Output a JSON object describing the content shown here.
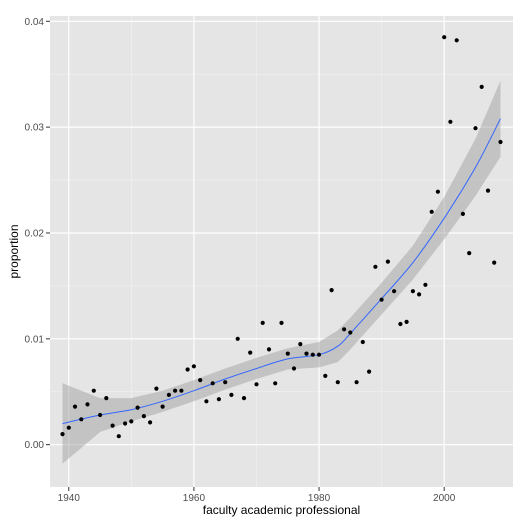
{
  "chart_data": {
    "type": "scatter",
    "xlabel": "faculty academic professional",
    "ylabel": "proportion",
    "xlim": [
      1937,
      2011
    ],
    "ylim": [
      -0.004,
      0.0405
    ],
    "x_ticks": [
      1940,
      1960,
      1980,
      2000
    ],
    "y_ticks": [
      0.0,
      0.01,
      0.02,
      0.03,
      0.04
    ],
    "y_tick_labels": [
      "0.00",
      "0.01",
      "0.02",
      "0.03",
      "0.04"
    ],
    "grid": true,
    "points": [
      {
        "x": 1939,
        "y": 0.001
      },
      {
        "x": 1940,
        "y": 0.0016
      },
      {
        "x": 1941,
        "y": 0.0036
      },
      {
        "x": 1942,
        "y": 0.0024
      },
      {
        "x": 1943,
        "y": 0.0038
      },
      {
        "x": 1944,
        "y": 0.0051
      },
      {
        "x": 1945,
        "y": 0.0028
      },
      {
        "x": 1946,
        "y": 0.0044
      },
      {
        "x": 1947,
        "y": 0.0018
      },
      {
        "x": 1948,
        "y": 0.0008
      },
      {
        "x": 1949,
        "y": 0.002
      },
      {
        "x": 1950,
        "y": 0.0022
      },
      {
        "x": 1951,
        "y": 0.0035
      },
      {
        "x": 1952,
        "y": 0.0027
      },
      {
        "x": 1953,
        "y": 0.0021
      },
      {
        "x": 1954,
        "y": 0.0053
      },
      {
        "x": 1955,
        "y": 0.0036
      },
      {
        "x": 1956,
        "y": 0.0047
      },
      {
        "x": 1957,
        "y": 0.0051
      },
      {
        "x": 1958,
        "y": 0.0051
      },
      {
        "x": 1959,
        "y": 0.0071
      },
      {
        "x": 1960,
        "y": 0.0074
      },
      {
        "x": 1961,
        "y": 0.0061
      },
      {
        "x": 1962,
        "y": 0.0041
      },
      {
        "x": 1963,
        "y": 0.0058
      },
      {
        "x": 1964,
        "y": 0.0043
      },
      {
        "x": 1965,
        "y": 0.0059
      },
      {
        "x": 1966,
        "y": 0.0047
      },
      {
        "x": 1967,
        "y": 0.01
      },
      {
        "x": 1968,
        "y": 0.0044
      },
      {
        "x": 1969,
        "y": 0.0087
      },
      {
        "x": 1970,
        "y": 0.0057
      },
      {
        "x": 1971,
        "y": 0.0115
      },
      {
        "x": 1972,
        "y": 0.009
      },
      {
        "x": 1973,
        "y": 0.0058
      },
      {
        "x": 1974,
        "y": 0.0115
      },
      {
        "x": 1975,
        "y": 0.0086
      },
      {
        "x": 1976,
        "y": 0.0072
      },
      {
        "x": 1977,
        "y": 0.0095
      },
      {
        "x": 1978,
        "y": 0.0086
      },
      {
        "x": 1979,
        "y": 0.0085
      },
      {
        "x": 1980,
        "y": 0.0085
      },
      {
        "x": 1981,
        "y": 0.0065
      },
      {
        "x": 1982,
        "y": 0.0146
      },
      {
        "x": 1983,
        "y": 0.0059
      },
      {
        "x": 1984,
        "y": 0.0109
      },
      {
        "x": 1985,
        "y": 0.0106
      },
      {
        "x": 1986,
        "y": 0.0059
      },
      {
        "x": 1987,
        "y": 0.0097
      },
      {
        "x": 1988,
        "y": 0.0069
      },
      {
        "x": 1989,
        "y": 0.0168
      },
      {
        "x": 1990,
        "y": 0.0137
      },
      {
        "x": 1991,
        "y": 0.0173
      },
      {
        "x": 1992,
        "y": 0.0145
      },
      {
        "x": 1993,
        "y": 0.0114
      },
      {
        "x": 1994,
        "y": 0.0116
      },
      {
        "x": 1995,
        "y": 0.0145
      },
      {
        "x": 1996,
        "y": 0.0142
      },
      {
        "x": 1997,
        "y": 0.0151
      },
      {
        "x": 1998,
        "y": 0.022
      },
      {
        "x": 1999,
        "y": 0.0239
      },
      {
        "x": 2000,
        "y": 0.0385
      },
      {
        "x": 2001,
        "y": 0.0305
      },
      {
        "x": 2002,
        "y": 0.0382
      },
      {
        "x": 2003,
        "y": 0.0218
      },
      {
        "x": 2004,
        "y": 0.0181
      },
      {
        "x": 2005,
        "y": 0.0299
      },
      {
        "x": 2006,
        "y": 0.0338
      },
      {
        "x": 2007,
        "y": 0.024
      },
      {
        "x": 2008,
        "y": 0.0172
      },
      {
        "x": 2009,
        "y": 0.0286
      }
    ],
    "smooth": {
      "method": "loess",
      "color": "#3366ff",
      "band_color": "#999999",
      "x": [
        1939,
        1945,
        1950,
        1955,
        1960,
        1965,
        1970,
        1975,
        1980,
        1983,
        1985,
        1990,
        1995,
        2000,
        2005,
        2009
      ],
      "y": [
        0.002,
        0.0028,
        0.0033,
        0.0041,
        0.0051,
        0.0062,
        0.0072,
        0.0081,
        0.0085,
        0.0093,
        0.0105,
        0.0138,
        0.0172,
        0.0214,
        0.0262,
        0.0308
      ],
      "lower": [
        -0.0018,
        0.0012,
        0.0022,
        0.0031,
        0.0041,
        0.0052,
        0.0062,
        0.0071,
        0.0073,
        0.0078,
        0.009,
        0.0123,
        0.0156,
        0.0194,
        0.0235,
        0.0272
      ],
      "upper": [
        0.0058,
        0.0044,
        0.0044,
        0.0051,
        0.0061,
        0.0072,
        0.0082,
        0.0091,
        0.0097,
        0.0108,
        0.012,
        0.0153,
        0.0188,
        0.0234,
        0.0289,
        0.0344
      ]
    },
    "colors": {
      "panel_background": "#e5e5e5",
      "grid_major": "#ffffff",
      "grid_minor": "#f2f2f2",
      "point": "#000000"
    }
  }
}
